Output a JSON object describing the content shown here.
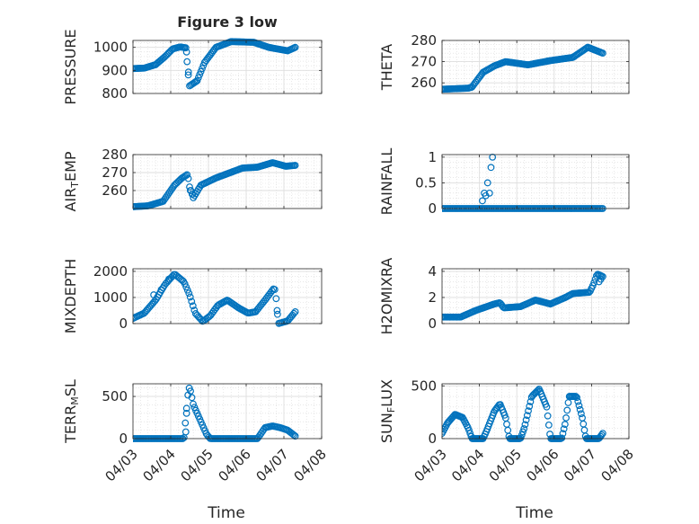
{
  "figure_title": "Figure 3 low",
  "x_tick_labels": [
    "04/03",
    "04/04",
    "04/05",
    "04/06",
    "04/07",
    "04/08"
  ],
  "x_axis_label": "Time",
  "marker_color": "#0072BD",
  "chart_data": [
    {
      "type": "scatter",
      "ylabel": "PRESSURE",
      "xlim": [
        0,
        5
      ],
      "ylim": [
        800,
        1030
      ],
      "yticks": [
        800,
        900,
        1000
      ],
      "grid": true,
      "anchors": [
        [
          0,
          908
        ],
        [
          0.3,
          910
        ],
        [
          0.6,
          925
        ],
        [
          0.85,
          960
        ],
        [
          1.05,
          993
        ],
        [
          1.25,
          1002
        ],
        [
          1.4,
          998
        ],
        [
          1.46,
          890
        ],
        [
          1.5,
          833
        ],
        [
          1.7,
          855
        ],
        [
          1.9,
          935
        ],
        [
          2.2,
          1000
        ],
        [
          2.6,
          1025
        ],
        [
          3.2,
          1022
        ],
        [
          3.6,
          1000
        ],
        [
          4.1,
          985
        ],
        [
          4.3,
          1000
        ]
      ],
      "scatter_points": [
        [
          1.42,
          980
        ],
        [
          1.47,
          893
        ]
      ],
      "n_points": 130
    },
    {
      "type": "scatter",
      "ylabel": "THETA",
      "xlim": [
        0,
        5
      ],
      "ylim": [
        255,
        280
      ],
      "yticks": [
        260,
        270,
        280
      ],
      "grid": true,
      "anchors": [
        [
          0,
          257
        ],
        [
          0.7,
          257.5
        ],
        [
          0.8,
          258
        ],
        [
          1.1,
          265
        ],
        [
          1.4,
          268
        ],
        [
          1.7,
          270
        ],
        [
          2.3,
          268.5
        ],
        [
          2.9,
          270.5
        ],
        [
          3.5,
          272
        ],
        [
          3.75,
          275
        ],
        [
          3.9,
          276.8
        ],
        [
          4.3,
          274
        ]
      ],
      "scatter_points": [],
      "n_points": 130
    },
    {
      "type": "scatter",
      "ylabel": "AIR_TEMP",
      "xlim": [
        0,
        5
      ],
      "ylim": [
        250,
        280
      ],
      "yticks": [
        260,
        270,
        280
      ],
      "grid": true,
      "anchors": [
        [
          0,
          251
        ],
        [
          0.4,
          251.5
        ],
        [
          0.8,
          254
        ],
        [
          1.1,
          263
        ],
        [
          1.3,
          267
        ],
        [
          1.45,
          269
        ],
        [
          1.5,
          262
        ],
        [
          1.6,
          256
        ],
        [
          1.8,
          263
        ],
        [
          2.2,
          267
        ],
        [
          2.9,
          272.5
        ],
        [
          3.3,
          273
        ],
        [
          3.7,
          275.5
        ],
        [
          4.05,
          273.5
        ],
        [
          4.3,
          274
        ]
      ],
      "scatter_points": [
        [
          1.52,
          260
        ],
        [
          1.58,
          258
        ]
      ],
      "n_points": 130
    },
    {
      "type": "scatter",
      "ylabel": "RAINFALL",
      "xlim": [
        0,
        5
      ],
      "ylim": [
        0,
        1.05
      ],
      "yticks": [
        0,
        0.5,
        1
      ],
      "grid": true,
      "anchors": [
        [
          0,
          0
        ],
        [
          4.3,
          0
        ]
      ],
      "scatter_points": [
        [
          1.08,
          0.15
        ],
        [
          1.13,
          0.3
        ],
        [
          1.17,
          0.25
        ],
        [
          1.22,
          0.5
        ],
        [
          1.27,
          0.3
        ],
        [
          1.31,
          0.8
        ],
        [
          1.35,
          1.0
        ]
      ],
      "n_points": 110
    },
    {
      "type": "scatter",
      "ylabel": "MIXDEPTH",
      "xlim": [
        0,
        5
      ],
      "ylim": [
        0,
        2100
      ],
      "yticks": [
        0,
        1000,
        2000
      ],
      "grid": true,
      "anchors": [
        [
          0,
          200
        ],
        [
          0.3,
          400
        ],
        [
          0.6,
          900
        ],
        [
          0.85,
          1500
        ],
        [
          1.1,
          1900
        ],
        [
          1.35,
          1600
        ],
        [
          1.5,
          1100
        ],
        [
          1.65,
          400
        ],
        [
          1.85,
          80
        ],
        [
          2.05,
          300
        ],
        [
          2.25,
          700
        ],
        [
          2.5,
          900
        ],
        [
          2.8,
          600
        ],
        [
          3.05,
          400
        ],
        [
          3.25,
          450
        ],
        [
          3.5,
          900
        ],
        [
          3.75,
          1380
        ],
        [
          3.8,
          900
        ],
        [
          3.85,
          0
        ],
        [
          4.1,
          100
        ],
        [
          4.3,
          450
        ]
      ],
      "scatter_points": [
        [
          0.55,
          1100
        ],
        [
          0.75,
          1300
        ],
        [
          0.95,
          1700
        ],
        [
          3.82,
          500
        ]
      ],
      "n_points": 120
    },
    {
      "type": "scatter",
      "ylabel": "H2OMIXRA",
      "xlim": [
        0,
        5
      ],
      "ylim": [
        0,
        4.2
      ],
      "yticks": [
        0,
        2,
        4
      ],
      "grid": true,
      "anchors": [
        [
          0,
          0.5
        ],
        [
          0.5,
          0.5
        ],
        [
          0.9,
          1.0
        ],
        [
          1.4,
          1.5
        ],
        [
          1.55,
          1.6
        ],
        [
          1.65,
          1.2
        ],
        [
          2.1,
          1.3
        ],
        [
          2.5,
          1.8
        ],
        [
          2.9,
          1.5
        ],
        [
          3.3,
          2.0
        ],
        [
          3.5,
          2.3
        ],
        [
          3.95,
          2.4
        ],
        [
          4.05,
          3.0
        ],
        [
          4.15,
          3.8
        ],
        [
          4.3,
          3.6
        ]
      ],
      "scatter_points": [
        [
          4.2,
          3.2
        ],
        [
          4.25,
          3.4
        ]
      ],
      "n_points": 130
    },
    {
      "type": "scatter",
      "ylabel": "TERR_MSL",
      "xlim": [
        0,
        5
      ],
      "ylim": [
        0,
        650
      ],
      "yticks": [
        0,
        500
      ],
      "grid": true,
      "anchors": [
        [
          0,
          0
        ],
        [
          1.35,
          0
        ],
        [
          1.45,
          500
        ],
        [
          1.5,
          620
        ],
        [
          1.6,
          400
        ],
        [
          1.8,
          200
        ],
        [
          1.95,
          50
        ],
        [
          2.05,
          0
        ],
        [
          3.3,
          0
        ],
        [
          3.5,
          130
        ],
        [
          3.7,
          150
        ],
        [
          3.9,
          130
        ],
        [
          4.1,
          100
        ],
        [
          4.3,
          30
        ]
      ],
      "scatter_points": [
        [
          1.4,
          80
        ],
        [
          1.42,
          300
        ]
      ],
      "n_points": 125
    },
    {
      "type": "scatter",
      "ylabel": "SUN_FLUX",
      "xlim": [
        0,
        5
      ],
      "ylim": [
        0,
        520
      ],
      "yticks": [
        0,
        500
      ],
      "grid": true,
      "anchors": [
        [
          0,
          50
        ],
        [
          0.15,
          150
        ],
        [
          0.35,
          230
        ],
        [
          0.55,
          200
        ],
        [
          0.7,
          100
        ],
        [
          0.8,
          0
        ],
        [
          1.1,
          0
        ],
        [
          1.2,
          80
        ],
        [
          1.4,
          260
        ],
        [
          1.55,
          330
        ],
        [
          1.7,
          200
        ],
        [
          1.8,
          0
        ],
        [
          2.1,
          0
        ],
        [
          2.2,
          100
        ],
        [
          2.4,
          400
        ],
        [
          2.6,
          470
        ],
        [
          2.8,
          300
        ],
        [
          2.9,
          0
        ],
        [
          3.2,
          0
        ],
        [
          3.3,
          150
        ],
        [
          3.4,
          400
        ],
        [
          3.6,
          400
        ],
        [
          3.75,
          200
        ],
        [
          3.85,
          0
        ],
        [
          4.2,
          0
        ],
        [
          4.3,
          50
        ]
      ],
      "scatter_points": [],
      "n_points": 150
    }
  ]
}
